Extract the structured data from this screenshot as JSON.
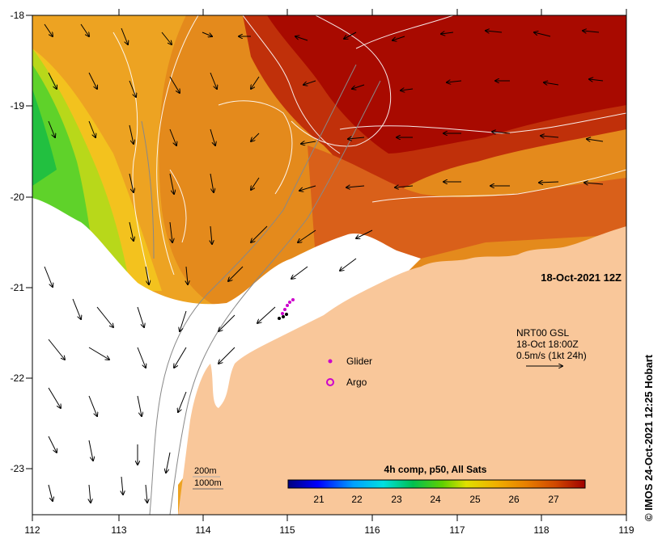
{
  "map": {
    "lon_labels": [
      "112",
      "113",
      "114",
      "115",
      "116",
      "117",
      "118",
      "119"
    ],
    "lat_labels": [
      "-18",
      "-19",
      "-20",
      "-21",
      "-22",
      "-23"
    ],
    "timestamp_label": "18-Oct-2021 12Z",
    "current_legend": {
      "line1": "NRT00 GSL",
      "line2": "18-Oct 18:00Z",
      "line3": "0.5m/s (1kt 24h)"
    },
    "glider_label": "Glider",
    "argo_label": "Argo",
    "scale_200": "200m",
    "scale_1000": "1000m",
    "colorbar_title": "4h comp, p50, All Sats",
    "colorbar_ticks": [
      "21",
      "22",
      "23",
      "24",
      "25",
      "26",
      "27"
    ],
    "credit": "© IMOS 24-Oct-2021 12:25 Hobart"
  },
  "colors": {
    "land": "#f9c79a",
    "cold": "#00007f",
    "warm": "#a00000"
  }
}
